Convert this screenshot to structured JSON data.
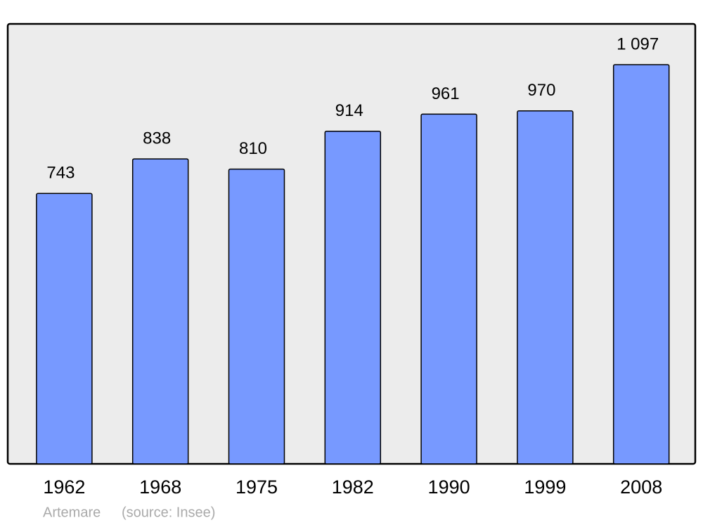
{
  "chart_data": {
    "type": "bar",
    "title": "Artemare",
    "source": "(source: Insee)",
    "categories": [
      "1962",
      "1968",
      "1975",
      "1982",
      "1990",
      "1999",
      "2008"
    ],
    "values": [
      743,
      838,
      810,
      914,
      961,
      970,
      1097
    ],
    "value_labels": [
      "743",
      "838",
      "810",
      "914",
      "961",
      "970",
      "1 097"
    ],
    "color": "#7799ff"
  }
}
